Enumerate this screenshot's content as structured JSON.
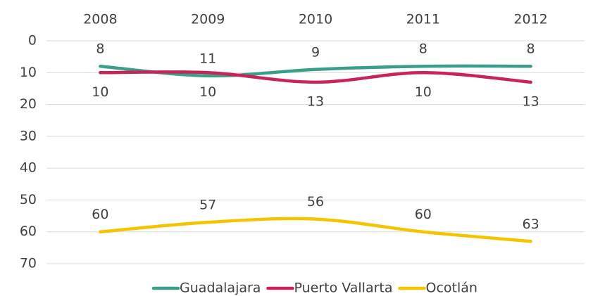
{
  "chart_data": {
    "type": "line",
    "categories": [
      "2008",
      "2009",
      "2010",
      "2011",
      "2012"
    ],
    "series": [
      {
        "name": "Guadalajara",
        "color": "#3a9e8a",
        "values": [
          8,
          11,
          9,
          8,
          8
        ],
        "label_position": "above"
      },
      {
        "name": "Puerto Vallarta",
        "color": "#c8245a",
        "values": [
          10,
          10,
          13,
          10,
          13
        ],
        "label_position": "below"
      },
      {
        "name": "Ocotlán",
        "color": "#f5c400",
        "values": [
          60,
          57,
          56,
          60,
          63
        ],
        "label_position": "above"
      }
    ],
    "ylim": [
      0,
      70
    ],
    "yticks": [
      0,
      10,
      20,
      30,
      40,
      50,
      60,
      70
    ],
    "y_inverted": true,
    "x_axis_position": "top",
    "grid": true,
    "smooth": true,
    "legend": "bottom"
  }
}
